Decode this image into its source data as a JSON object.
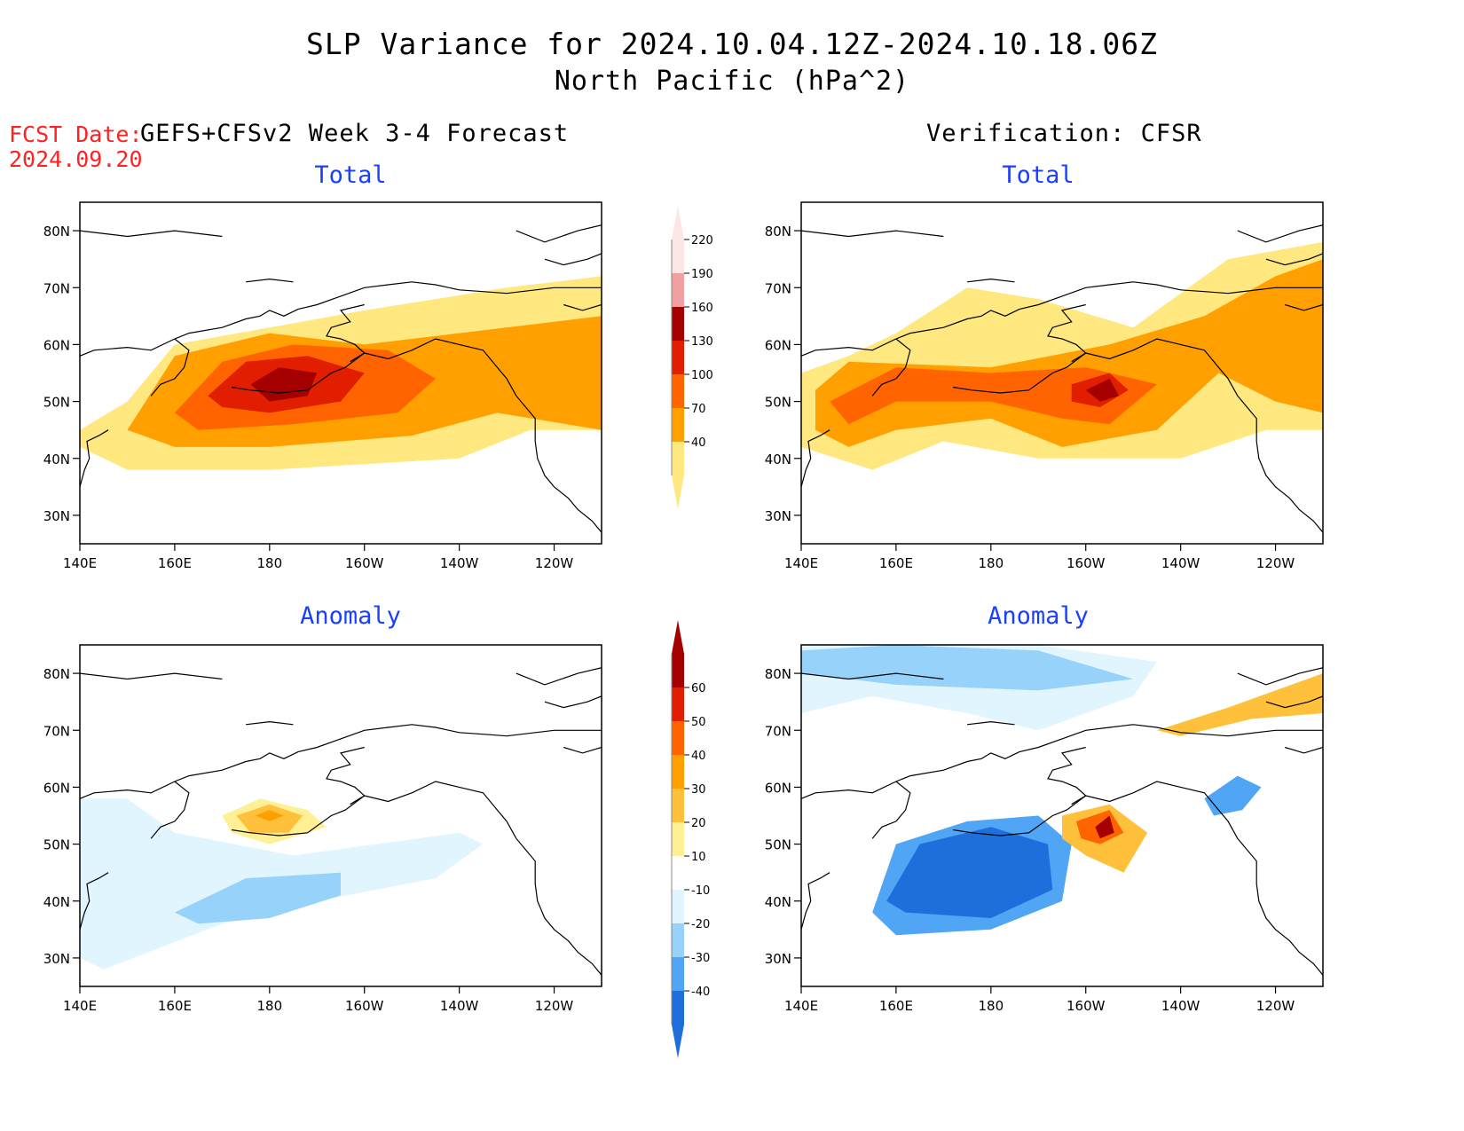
{
  "title": {
    "line1": "SLP Variance for 2024.10.04.12Z-2024.10.18.06Z",
    "line2": "North Pacific (hPa^2)"
  },
  "forecast": {
    "date_label": "FCST Date:",
    "date_value": "2024.09.20",
    "heading": "GEFS+CFSv2 Week 3-4 Forecast"
  },
  "verification": {
    "heading": "Verification: CFSR"
  },
  "panels": {
    "top_left": "Total",
    "top_right": "Total",
    "bottom_left": "Anomaly",
    "bottom_right": "Anomaly"
  },
  "axes": {
    "lat_labels": [
      "80N",
      "70N",
      "60N",
      "50N",
      "40N",
      "30N"
    ],
    "lon_labels": [
      "140E",
      "160E",
      "180",
      "160W",
      "140W",
      "120W"
    ]
  },
  "total_colorbar": {
    "levels": [
      "40",
      "70",
      "100",
      "130",
      "160",
      "190",
      "220"
    ],
    "colors": [
      "#ffe880",
      "#ffa000",
      "#ff6400",
      "#e11e00",
      "#a50000",
      "#f0a0a0",
      "#ffe6e6"
    ]
  },
  "anomaly_colorbar": {
    "levels": [
      "-40",
      "-30",
      "-20",
      "-10",
      "10",
      "20",
      "30",
      "40",
      "50",
      "60"
    ],
    "colors": [
      "#1e6edc",
      "#50a5f5",
      "#96d2fa",
      "#e1f5ff",
      "#ffffff",
      "#fff096",
      "#ffc03c",
      "#ffa000",
      "#ff6400",
      "#e11e00",
      "#a50000"
    ]
  },
  "chart_data": [
    {
      "type": "heatmap",
      "panel": "GEFS+CFSv2 Week 3-4 Forecast — Total",
      "fields": [
        {
          "level": "40",
          "polygon": [
            [
              140,
              45
            ],
            [
              150,
              50
            ],
            [
              160,
              60
            ],
            [
              180,
              63
            ],
            [
              200,
              66
            ],
            [
              230,
              70
            ],
            [
              250,
              72
            ],
            [
              250,
              45
            ],
            [
              235,
              45
            ],
            [
              220,
              40
            ],
            [
              180,
              38
            ],
            [
              150,
              38
            ],
            [
              140,
              42
            ]
          ]
        },
        {
          "level": "70",
          "polygon": [
            [
              150,
              45
            ],
            [
              160,
              58
            ],
            [
              180,
              62
            ],
            [
              200,
              60
            ],
            [
              220,
              62
            ],
            [
              250,
              65
            ],
            [
              250,
              45
            ],
            [
              228,
              48
            ],
            [
              210,
              44
            ],
            [
              180,
              42
            ],
            [
              160,
              42
            ]
          ]
        },
        {
          "level": "100",
          "polygon": [
            [
              160,
              48
            ],
            [
              170,
              57
            ],
            [
              185,
              60
            ],
            [
              205,
              59
            ],
            [
              215,
              54
            ],
            [
              207,
              48
            ],
            [
              185,
              46
            ],
            [
              165,
              45
            ]
          ]
        },
        {
          "level": "130",
          "polygon": [
            [
              167,
              51
            ],
            [
              175,
              57
            ],
            [
              188,
              58
            ],
            [
              200,
              55
            ],
            [
              195,
              50
            ],
            [
              180,
              48
            ],
            [
              170,
              49
            ]
          ]
        },
        {
          "level": "160",
          "polygon": [
            [
              176,
              53
            ],
            [
              182,
              56
            ],
            [
              190,
              55
            ],
            [
              188,
              51
            ],
            [
              180,
              50
            ]
          ]
        }
      ]
    },
    {
      "type": "heatmap",
      "panel": "Verification: CFSR — Total",
      "fields": [
        {
          "level": "40",
          "polygon": [
            [
              140,
              55
            ],
            [
              150,
              58
            ],
            [
              160,
              62
            ],
            [
              175,
              70
            ],
            [
              190,
              68
            ],
            [
              210,
              63
            ],
            [
              230,
              75
            ],
            [
              250,
              78
            ],
            [
              250,
              45
            ],
            [
              238,
              45
            ],
            [
              220,
              40
            ],
            [
              190,
              40
            ],
            [
              170,
              43
            ],
            [
              155,
              38
            ],
            [
              140,
              42
            ]
          ]
        },
        {
          "level": "70",
          "polygon": [
            [
              143,
              52
            ],
            [
              150,
              57
            ],
            [
              180,
              56
            ],
            [
              205,
              60
            ],
            [
              225,
              65
            ],
            [
              240,
              72
            ],
            [
              250,
              75
            ],
            [
              250,
              48
            ],
            [
              240,
              50
            ],
            [
              228,
              55
            ],
            [
              215,
              45
            ],
            [
              195,
              42
            ],
            [
              180,
              47
            ],
            [
              160,
              45
            ],
            [
              150,
              42
            ],
            [
              143,
              45
            ]
          ]
        },
        {
          "level": "100",
          "polygon": [
            [
              146,
              50
            ],
            [
              160,
              56
            ],
            [
              180,
              55
            ],
            [
              200,
              56
            ],
            [
              215,
              53
            ],
            [
              205,
              46
            ],
            [
              195,
              47
            ],
            [
              180,
              50
            ],
            [
              160,
              50
            ],
            [
              150,
              46
            ]
          ]
        },
        {
          "level": "130",
          "polygon": [
            [
              197,
              53
            ],
            [
              205,
              55
            ],
            [
              209,
              52
            ],
            [
              203,
              49
            ],
            [
              197,
              50
            ]
          ]
        },
        {
          "level": "160",
          "polygon": [
            [
              200,
              52
            ],
            [
              205,
              54
            ],
            [
              207,
              51
            ],
            [
              203,
              50
            ]
          ]
        }
      ]
    },
    {
      "type": "heatmap",
      "panel": "GEFS+CFSv2 Week 3-4 Forecast — Anomaly",
      "fields": [
        {
          "level": "-10",
          "polygon": [
            [
              140,
              58
            ],
            [
              150,
              58
            ],
            [
              160,
              52
            ],
            [
              185,
              48
            ],
            [
              220,
              52
            ],
            [
              225,
              50
            ],
            [
              215,
              44
            ],
            [
              190,
              40
            ],
            [
              170,
              36
            ],
            [
              145,
              28
            ],
            [
              140,
              30
            ]
          ]
        },
        {
          "level": "-20",
          "polygon": [
            [
              160,
              38
            ],
            [
              175,
              44
            ],
            [
              195,
              45
            ],
            [
              195,
              41
            ],
            [
              180,
              37
            ],
            [
              165,
              36
            ]
          ]
        },
        {
          "level": "10",
          "polygon": [
            [
              170,
              55
            ],
            [
              178,
              58
            ],
            [
              188,
              56
            ],
            [
              192,
              53
            ],
            [
              180,
              50
            ],
            [
              172,
              52
            ]
          ]
        },
        {
          "level": "20",
          "polygon": [
            [
              173,
              55
            ],
            [
              180,
              57
            ],
            [
              187,
              55
            ],
            [
              184,
              52
            ],
            [
              176,
              52
            ]
          ]
        },
        {
          "level": "30",
          "polygon": [
            [
              177,
              55
            ],
            [
              180,
              56
            ],
            [
              183,
              55
            ],
            [
              180,
              54
            ]
          ]
        }
      ]
    },
    {
      "type": "heatmap",
      "panel": "Verification: CFSR — Anomaly",
      "fields": [
        {
          "level": "-10",
          "polygon": [
            [
              140,
              73
            ],
            [
              155,
              76
            ],
            [
              175,
              73
            ],
            [
              190,
              70
            ],
            [
              210,
              76
            ],
            [
              215,
              82
            ],
            [
              190,
              85
            ],
            [
              140,
              85
            ]
          ]
        },
        {
          "level": "-20",
          "polygon": [
            [
              140,
              84
            ],
            [
              160,
              85
            ],
            [
              190,
              84
            ],
            [
              210,
              79
            ],
            [
              190,
              77
            ],
            [
              160,
              78
            ],
            [
              140,
              80
            ]
          ]
        },
        {
          "level": "-30",
          "polygon": [
            [
              155,
              38
            ],
            [
              160,
              50
            ],
            [
              175,
              54
            ],
            [
              190,
              55
            ],
            [
              197,
              50
            ],
            [
              195,
              40
            ],
            [
              180,
              35
            ],
            [
              160,
              34
            ]
          ]
        },
        {
          "level": "-40",
          "polygon": [
            [
              158,
              40
            ],
            [
              165,
              50
            ],
            [
              180,
              53
            ],
            [
              192,
              50
            ],
            [
              193,
              42
            ],
            [
              180,
              37
            ],
            [
              162,
              38
            ]
          ]
        },
        {
          "level": "20",
          "polygon": [
            [
              195,
              55
            ],
            [
              205,
              57
            ],
            [
              213,
              52
            ],
            [
              208,
              45
            ],
            [
              200,
              48
            ],
            [
              195,
              51
            ]
          ]
        },
        {
          "level": "40",
          "polygon": [
            [
              198,
              54
            ],
            [
              205,
              56
            ],
            [
              208,
              52
            ],
            [
              203,
              50
            ],
            [
              199,
              51
            ]
          ]
        },
        {
          "level": "60",
          "polygon": [
            [
              202,
              53
            ],
            [
              205,
              55
            ],
            [
              206,
              52
            ],
            [
              203,
              51
            ]
          ]
        },
        {
          "level": "20",
          "polygon": [
            [
              215,
              70
            ],
            [
              230,
              74
            ],
            [
              250,
              80
            ],
            [
              250,
              73
            ],
            [
              235,
              72
            ],
            [
              220,
              69
            ]
          ]
        },
        {
          "level": "-30",
          "polygon": [
            [
              225,
              58
            ],
            [
              232,
              62
            ],
            [
              237,
              60
            ],
            [
              233,
              56
            ],
            [
              227,
              55
            ]
          ]
        }
      ]
    }
  ]
}
